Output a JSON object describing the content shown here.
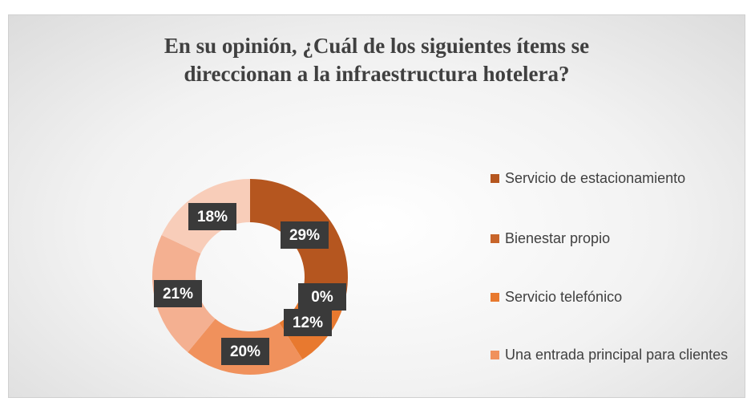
{
  "chart_data": {
    "type": "donut",
    "title": "En su opinión, ¿Cuál de los siguientes ítems se direccionan a la infraestructura hotelera?",
    "categories": [
      "Servicio de estacionamiento",
      "Bienestar propio",
      "Servicio telefónico",
      "Una entrada principal para clientes",
      null,
      null
    ],
    "values": [
      29,
      0,
      12,
      20,
      21,
      18
    ],
    "value_labels": [
      "29%",
      "0%",
      "12%",
      "20%",
      "21%",
      "18%"
    ],
    "colors": [
      "#b5561f",
      "#c8652a",
      "#e8792f",
      "#f0915c",
      "#f4b091",
      "#f8cdb9"
    ],
    "legend": "right"
  }
}
